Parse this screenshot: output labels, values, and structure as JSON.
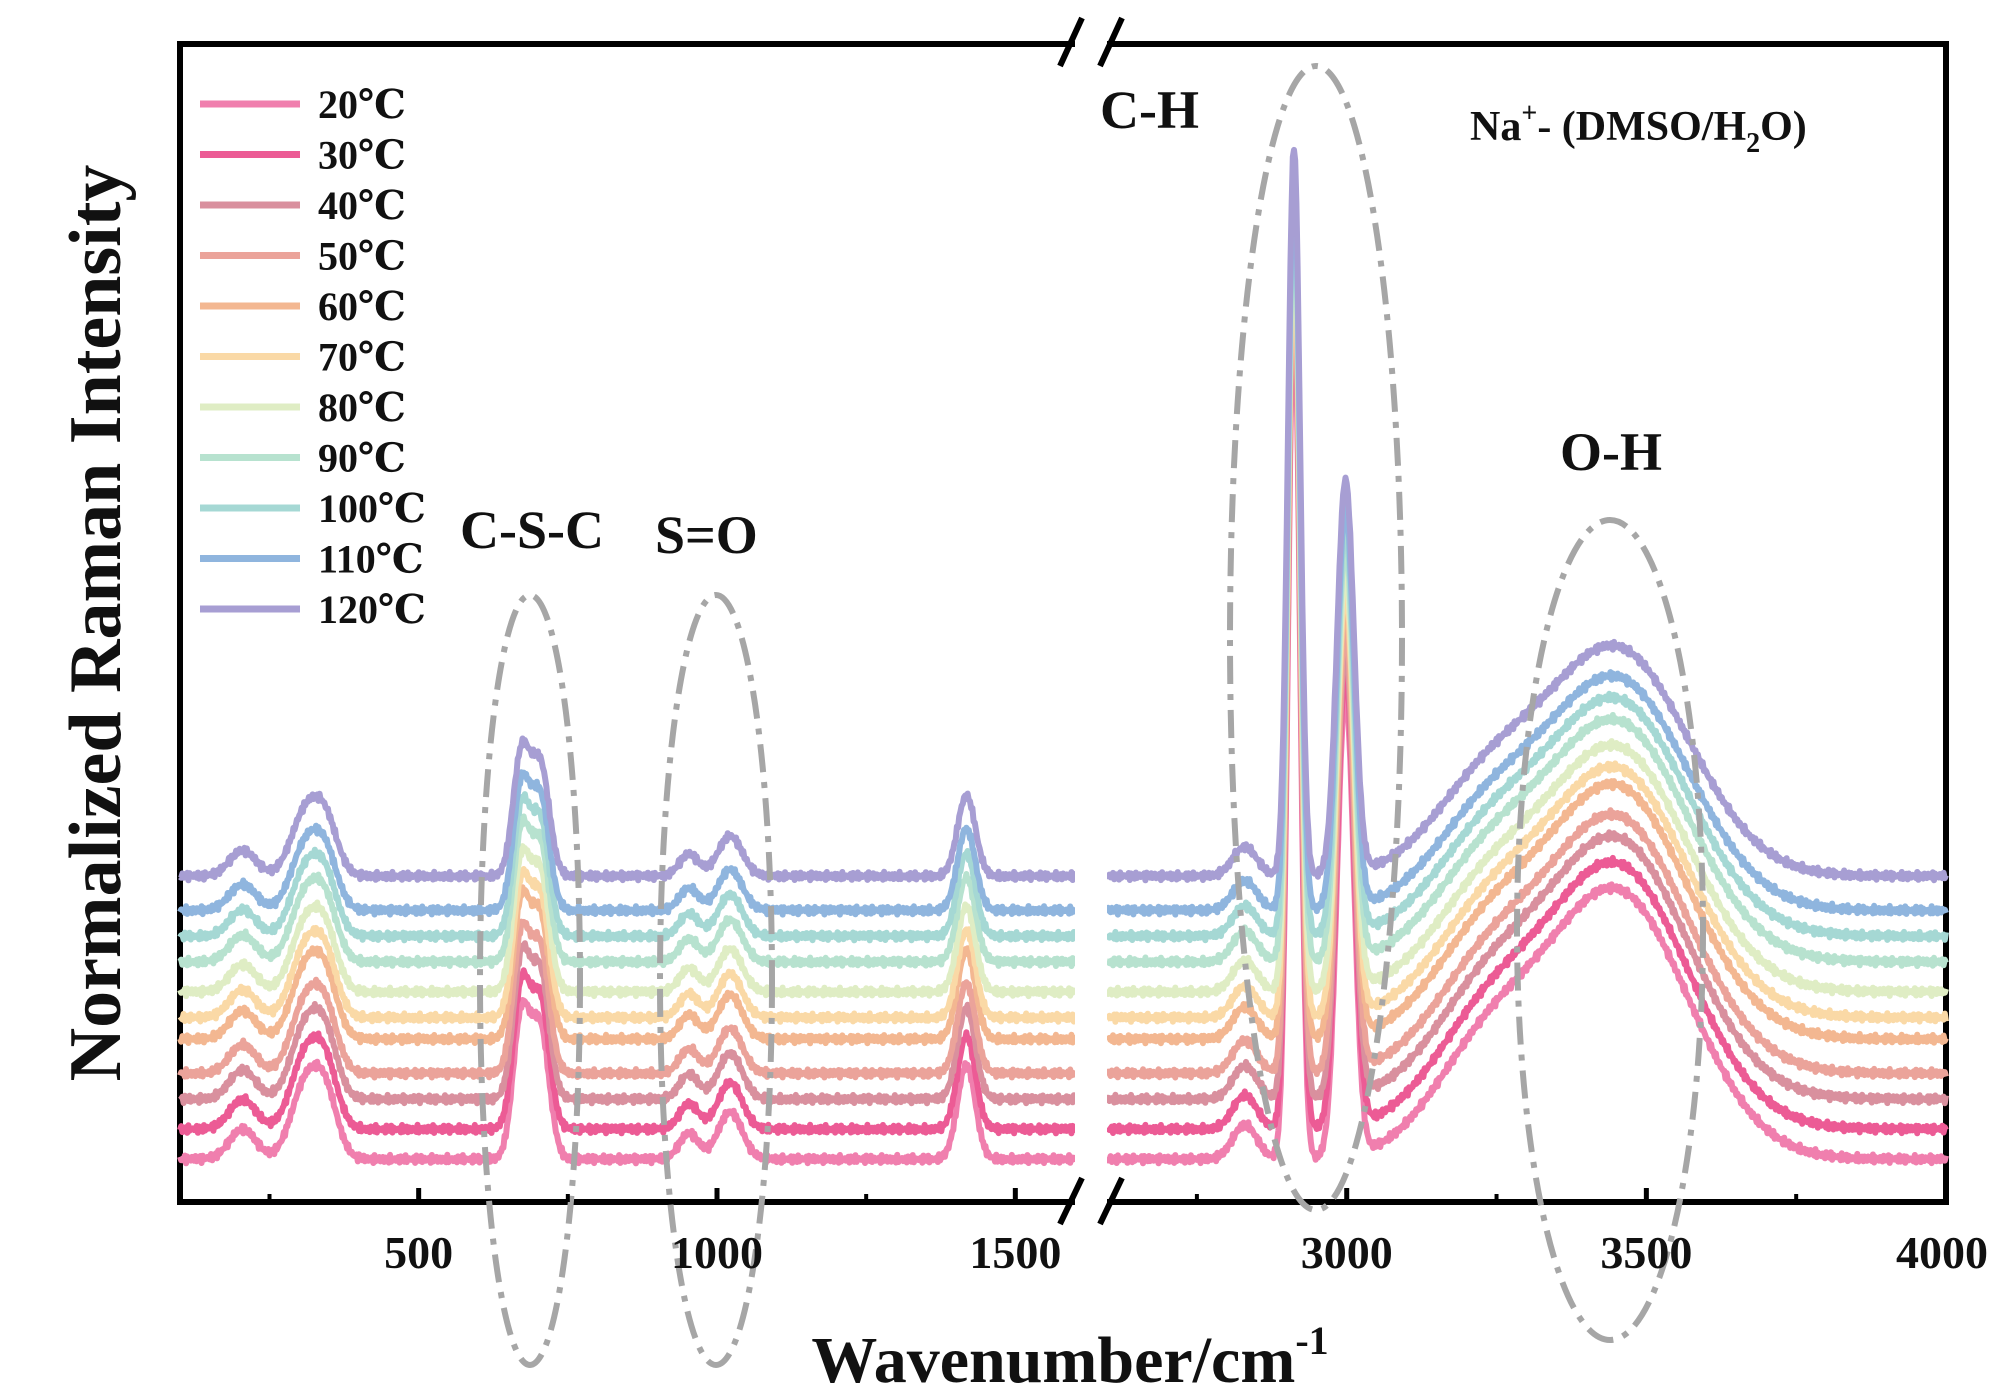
{
  "chart_data": {
    "type": "line",
    "title": "",
    "xlabel": "Wavenumber/cm",
    "xlabel_superscript": "-1",
    "ylabel": "Normalized Raman Intensity",
    "axis_break": "1600 / 2600",
    "x_segments": [
      [
        100,
        1600
      ],
      [
        2600,
        4000
      ]
    ],
    "xticks": [
      {
        "value": 500,
        "label": "500"
      },
      {
        "value": 1000,
        "label": "1000"
      },
      {
        "value": 1500,
        "label": "1500"
      },
      {
        "value": 3000,
        "label": "3000"
      },
      {
        "value": 3500,
        "label": "3500"
      },
      {
        "value": 4000,
        "label": "4000"
      }
    ],
    "minor_xticks": [
      250,
      750,
      1250,
      2750,
      3250,
      3750
    ],
    "legend_position": "top-left",
    "sample_label": {
      "prefix": "Na",
      "prefix_sup": "+",
      "mid": "- (DMSO/H",
      "sub": "2",
      "suffix": "O)"
    },
    "annotations": [
      "C-S-C",
      "S=O",
      "C-H",
      "O-H"
    ],
    "series": [
      {
        "name": "20℃",
        "color": "#f07fae",
        "offset": 0.0
      },
      {
        "name": "30℃",
        "color": "#ec5b95",
        "offset": 0.07
      },
      {
        "name": "40℃",
        "color": "#d9909e",
        "offset": 0.14
      },
      {
        "name": "50℃",
        "color": "#eba39a",
        "offset": 0.2
      },
      {
        "name": "60℃",
        "color": "#f3b791",
        "offset": 0.28
      },
      {
        "name": "70℃",
        "color": "#fad9a6",
        "offset": 0.33
      },
      {
        "name": "80℃",
        "color": "#dfedc4",
        "offset": 0.39
      },
      {
        "name": "90℃",
        "color": "#b7e2cf",
        "offset": 0.46
      },
      {
        "name": "100℃",
        "color": "#a5d8d4",
        "offset": 0.52
      },
      {
        "name": "110℃",
        "color": "#8fb5de",
        "offset": 0.58
      },
      {
        "name": "120℃",
        "color": "#a79ed3",
        "offset": 0.66
      }
    ],
    "peaks": [
      {
        "center": 205,
        "width": 22,
        "height": 0.07
      },
      {
        "center": 310,
        "width": 24,
        "height": 0.17
      },
      {
        "center": 345,
        "width": 20,
        "height": 0.13
      },
      {
        "center": 672,
        "width": 14,
        "height": 0.33
      },
      {
        "center": 704,
        "width": 15,
        "height": 0.3
      },
      {
        "center": 953,
        "width": 16,
        "height": 0.06
      },
      {
        "center": 1022,
        "width": 20,
        "height": 0.11
      },
      {
        "center": 1418,
        "width": 15,
        "height": 0.22
      },
      {
        "center": 2830,
        "width": 20,
        "height": 0.08
      },
      {
        "center": 2912,
        "width": 10,
        "height": 2.0
      },
      {
        "center": 2998,
        "width": 14,
        "height": 1.08
      },
      {
        "center": 3230,
        "width": 90,
        "height": 0.22
      },
      {
        "center": 3450,
        "width": 120,
        "height": 0.62
      }
    ],
    "ylim": [
      -0.1,
      2.6
    ]
  }
}
